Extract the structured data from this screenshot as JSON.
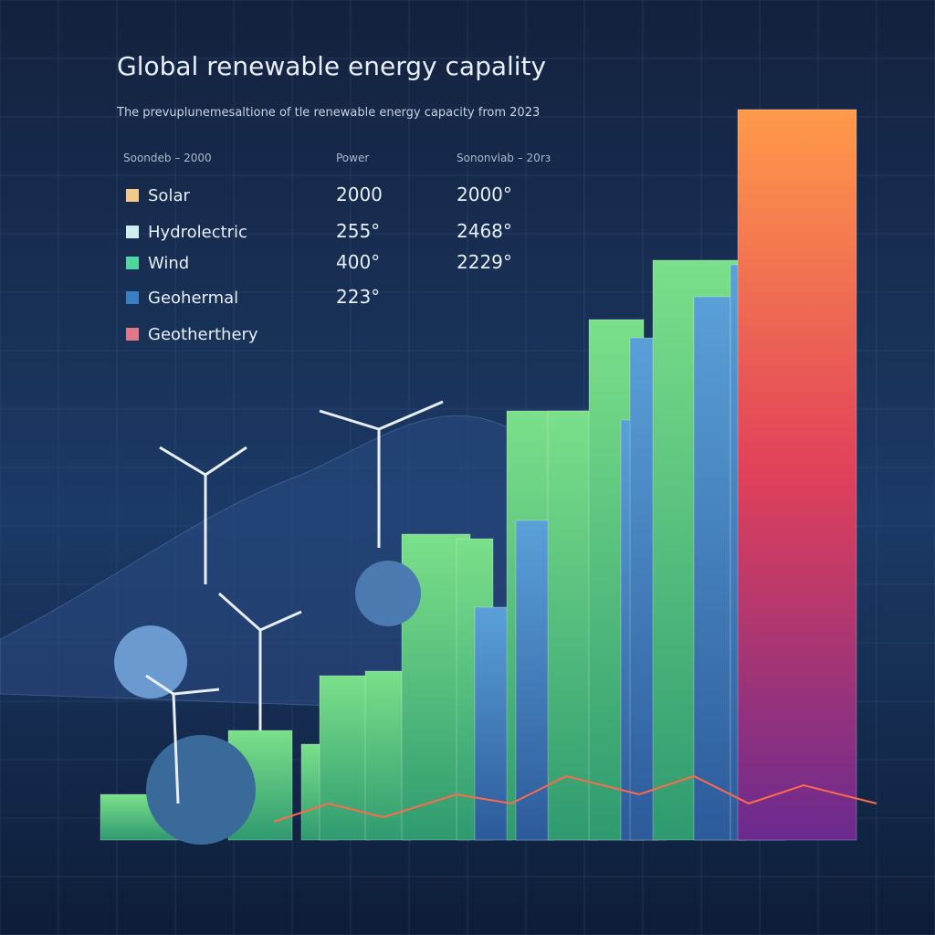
{
  "header": {
    "title": "Global renewable energy capality",
    "subtitle": "The prevuplunemesaltione of tle renewable energy capacity from 2023"
  },
  "table": {
    "columns": [
      "Soondeb – 2000",
      "Power",
      "Sononvlab – 20rз"
    ],
    "rows": [
      {
        "label": "Solar",
        "color": "#f2c98a",
        "cells": [
          "2000",
          "2000°"
        ]
      },
      {
        "label": "Hydrolectric",
        "color": "#cfeef0",
        "cells": [
          "255°",
          "2468°"
        ]
      },
      {
        "label": "Wind",
        "color": "#4fd6a0",
        "cells": [
          "400°",
          "2229°"
        ]
      },
      {
        "label": "Geohermal",
        "color": "#3a7fc4",
        "cells": [
          "223°"
        ]
      },
      {
        "label": "Geotherthery",
        "color": "#e0788a",
        "cells": []
      }
    ]
  }
}
